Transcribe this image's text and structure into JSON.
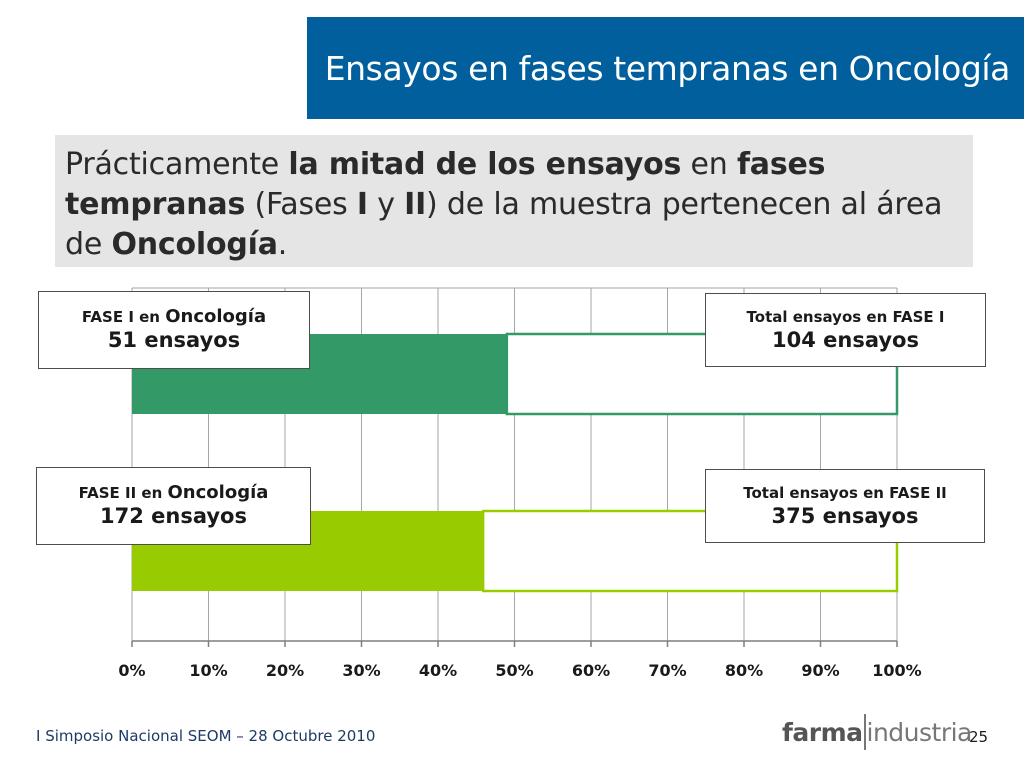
{
  "header": {
    "title": "Ensayos en fases tempranas en Oncología"
  },
  "summary": {
    "p1": "Prácticamente ",
    "b1": "la mitad de los ensayos",
    "p2": " en ",
    "b2": "fases tempranas",
    "p3": " (Fases ",
    "b3": "I",
    "p4": " y ",
    "b4": "II",
    "p5": ") de la muestra pertenecen al área de ",
    "b5": "Oncología",
    "p6": "."
  },
  "callouts": {
    "phase1_onc": {
      "label": "FASE I en",
      "label_em": "Oncología",
      "value": "51 ensayos"
    },
    "phase1_total": {
      "label": "Total ensayos en FASE I",
      "value": "104 ensayos"
    },
    "phase2_onc": {
      "label": "FASE II en",
      "label_em": "Oncología",
      "value": "172 ensayos"
    },
    "phase2_total": {
      "label": "Total ensayos en FASE II",
      "value": "375 ensayos"
    }
  },
  "chart_data": {
    "type": "bar",
    "orientation": "horizontal",
    "stacked": true,
    "categories": [
      "FASE I",
      "FASE II"
    ],
    "series": [
      {
        "name": "",
        "values": [
          49.0,
          45.9
        ],
        "colors": [
          "#339966",
          "#99cc00"
        ]
      },
      {
        "name": "",
        "values": [
          51.0,
          54.1
        ],
        "colors": [
          "#ffffff",
          "#ffffff"
        ]
      }
    ],
    "xlim": [
      0,
      100
    ],
    "x_ticks": [
      "0%",
      "10%",
      "20%",
      "30%",
      "40%",
      "50%",
      "60%",
      "70%",
      "80%",
      "90%",
      "100%"
    ],
    "grid": true,
    "legend": "none"
  },
  "footer": {
    "event": "I Simposio Nacional SEOM – 28 Octubre 2010",
    "logo_strong": "farma",
    "logo_light": "industria",
    "page_number": "25"
  }
}
